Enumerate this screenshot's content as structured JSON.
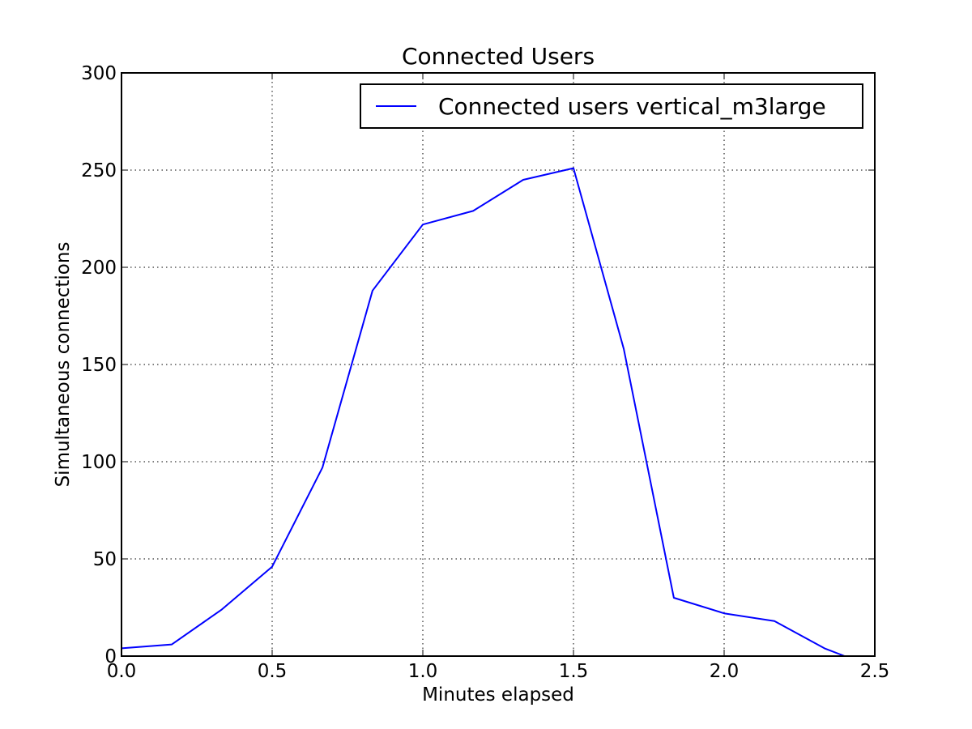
{
  "chart_data": {
    "type": "line",
    "title": "Connected Users",
    "xlabel": "Minutes elapsed",
    "ylabel": "Simultaneous connections",
    "xlim": [
      0,
      2.5
    ],
    "ylim": [
      0,
      300
    ],
    "xticks": [
      "0.0",
      "0.5",
      "1.0",
      "1.5",
      "2.0",
      "2.5"
    ],
    "yticks": [
      "0",
      "50",
      "100",
      "150",
      "200",
      "250",
      "300"
    ],
    "grid": true,
    "legend_position": "top-right",
    "series": [
      {
        "name": "Connected users vertical_m3large",
        "color": "#0000ff",
        "x": [
          0.0,
          0.167,
          0.333,
          0.5,
          0.667,
          0.833,
          1.0,
          1.167,
          1.333,
          1.5,
          1.667,
          1.833,
          2.0,
          2.167,
          2.333,
          2.4
        ],
        "y": [
          4,
          6,
          24,
          46,
          97,
          188,
          222,
          229,
          245,
          251,
          158,
          30,
          22,
          18,
          4,
          0
        ]
      }
    ]
  }
}
